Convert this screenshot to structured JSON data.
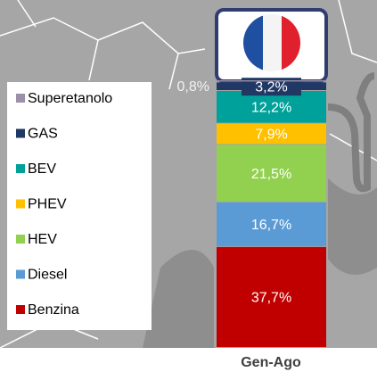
{
  "chart_data": {
    "type": "stacked_bar",
    "categories": [
      "Gen-Ago"
    ],
    "series": [
      {
        "name": "Benzina",
        "color": "#c00000",
        "values": [
          37.7
        ],
        "value_labels": [
          "37,7%"
        ]
      },
      {
        "name": "Diesel",
        "color": "#5b9bd5",
        "values": [
          16.7
        ],
        "value_labels": [
          "16,7%"
        ]
      },
      {
        "name": "HEV",
        "color": "#92d050",
        "values": [
          21.5
        ],
        "value_labels": [
          "21,5%"
        ]
      },
      {
        "name": "PHEV",
        "color": "#ffc000",
        "values": [
          7.9
        ],
        "value_labels": [
          "7,9%"
        ]
      },
      {
        "name": "BEV",
        "color": "#00a19a",
        "values": [
          12.2
        ],
        "value_labels": [
          "12,2%"
        ]
      },
      {
        "name": "GAS",
        "color": "#1f3864",
        "values": [
          3.2
        ],
        "value_labels": [
          "3,2%"
        ]
      },
      {
        "name": "Superetanolo",
        "color": "#9c8fa8",
        "values": [
          0.8
        ],
        "value_labels": [
          "0,8%"
        ]
      }
    ]
  }
}
